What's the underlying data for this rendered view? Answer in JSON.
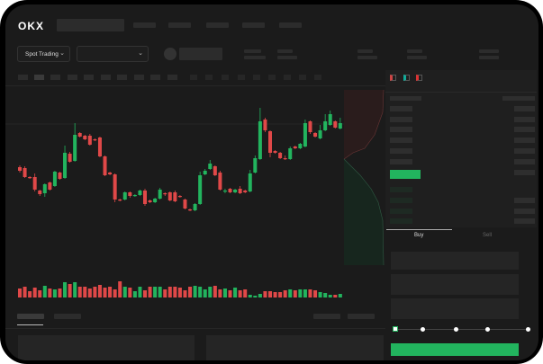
{
  "header": {
    "logo": "OKX",
    "logo_icon": "okx-logo"
  },
  "toolbar": {
    "market_select": "Spot Trading",
    "market_chevron": "chevron-down-icon",
    "pair_chevron": "chevron-down-icon"
  },
  "orderbook": {
    "view_icons": [
      "orderbook-both-icon",
      "orderbook-bids-icon",
      "orderbook-asks-icon"
    ]
  },
  "trade": {
    "tabs": [
      "Buy",
      "Sell"
    ],
    "slider_percent": 0
  },
  "colors": {
    "up": "#22b45e",
    "down": "#e04848",
    "background": "#1b1b1b"
  },
  "chart_data": {
    "type": "candlestick",
    "candles": [
      [
        69,
        65,
        71,
        63
      ],
      [
        68,
        58,
        70,
        57
      ],
      [
        58,
        57,
        59,
        56
      ],
      [
        58,
        44,
        62,
        42
      ],
      [
        43,
        39,
        44,
        37
      ],
      [
        40,
        50,
        51,
        36
      ],
      [
        52,
        44,
        53,
        43
      ],
      [
        48,
        64,
        65,
        47
      ],
      [
        63,
        56,
        64,
        55
      ],
      [
        57,
        85,
        93,
        56
      ],
      [
        84,
        75,
        86,
        74
      ],
      [
        76,
        105,
        118,
        75
      ],
      [
        107,
        103,
        108,
        102
      ],
      [
        104,
        100,
        105,
        99
      ],
      [
        104,
        94,
        106,
        93
      ],
      [
        100,
        99,
        101,
        98
      ],
      [
        102,
        81,
        103,
        80
      ],
      [
        81,
        60,
        82,
        59
      ],
      [
        63,
        61,
        64,
        60
      ],
      [
        61,
        33,
        62,
        30
      ],
      [
        33,
        32,
        34,
        31
      ],
      [
        33,
        41,
        42,
        32
      ],
      [
        41,
        37,
        42,
        35
      ],
      [
        37,
        38,
        39,
        36
      ],
      [
        38,
        43,
        44,
        37
      ],
      [
        43,
        28,
        45,
        26
      ],
      [
        32,
        30,
        33,
        29
      ],
      [
        30,
        34,
        35,
        29
      ],
      [
        34,
        44,
        46,
        33
      ],
      [
        40,
        39,
        41,
        37
      ],
      [
        41,
        32,
        42,
        31
      ],
      [
        41,
        31,
        43,
        30
      ],
      [
        37,
        36,
        38,
        35
      ],
      [
        33,
        23,
        34,
        22
      ],
      [
        22,
        21,
        23,
        20
      ],
      [
        21,
        28,
        29,
        20
      ],
      [
        28,
        60,
        64,
        27
      ],
      [
        61,
        65,
        67,
        60
      ],
      [
        67,
        73,
        77,
        66
      ],
      [
        70,
        60,
        71,
        59
      ],
      [
        63,
        44,
        65,
        43
      ],
      [
        42,
        43,
        45,
        40
      ],
      [
        45,
        41,
        46,
        40
      ],
      [
        41,
        44,
        45,
        40
      ],
      [
        45,
        40,
        48,
        39
      ],
      [
        43,
        41,
        44,
        40
      ],
      [
        42,
        62,
        66,
        41
      ],
      [
        63,
        79,
        82,
        62
      ],
      [
        78,
        120,
        135,
        77
      ],
      [
        122,
        110,
        124,
        108
      ],
      [
        109,
        85,
        110,
        80
      ],
      [
        87,
        85,
        88,
        84
      ],
      [
        85,
        79,
        86,
        78
      ],
      [
        79,
        78,
        82,
        77
      ],
      [
        78,
        90,
        92,
        77
      ],
      [
        92,
        90,
        93,
        89
      ],
      [
        90,
        95,
        96,
        89
      ],
      [
        92,
        118,
        122,
        91
      ],
      [
        120,
        108,
        121,
        106
      ],
      [
        107,
        103,
        108,
        102
      ],
      [
        101,
        110,
        116,
        100
      ],
      [
        110,
        120,
        128,
        109
      ],
      [
        116,
        128,
        132,
        115
      ],
      [
        120,
        113,
        121,
        112
      ],
      [
        112,
        118,
        124,
        111
      ]
    ],
    "volume": [
      10,
      12,
      7,
      11,
      8,
      13,
      10,
      9,
      10,
      17,
      15,
      17,
      12,
      12,
      10,
      12,
      14,
      11,
      12,
      9,
      18,
      12,
      11,
      7,
      12,
      8,
      12,
      12,
      12,
      9,
      12,
      12,
      11,
      8,
      12,
      13,
      12,
      9,
      12,
      13,
      9,
      10,
      8,
      11,
      8,
      9,
      3,
      2,
      4,
      7,
      7,
      6,
      6,
      8,
      9,
      8,
      9,
      9,
      9,
      8,
      6,
      5,
      3,
      3,
      4
    ],
    "depth": {
      "asks": "red",
      "bids": "green"
    }
  }
}
